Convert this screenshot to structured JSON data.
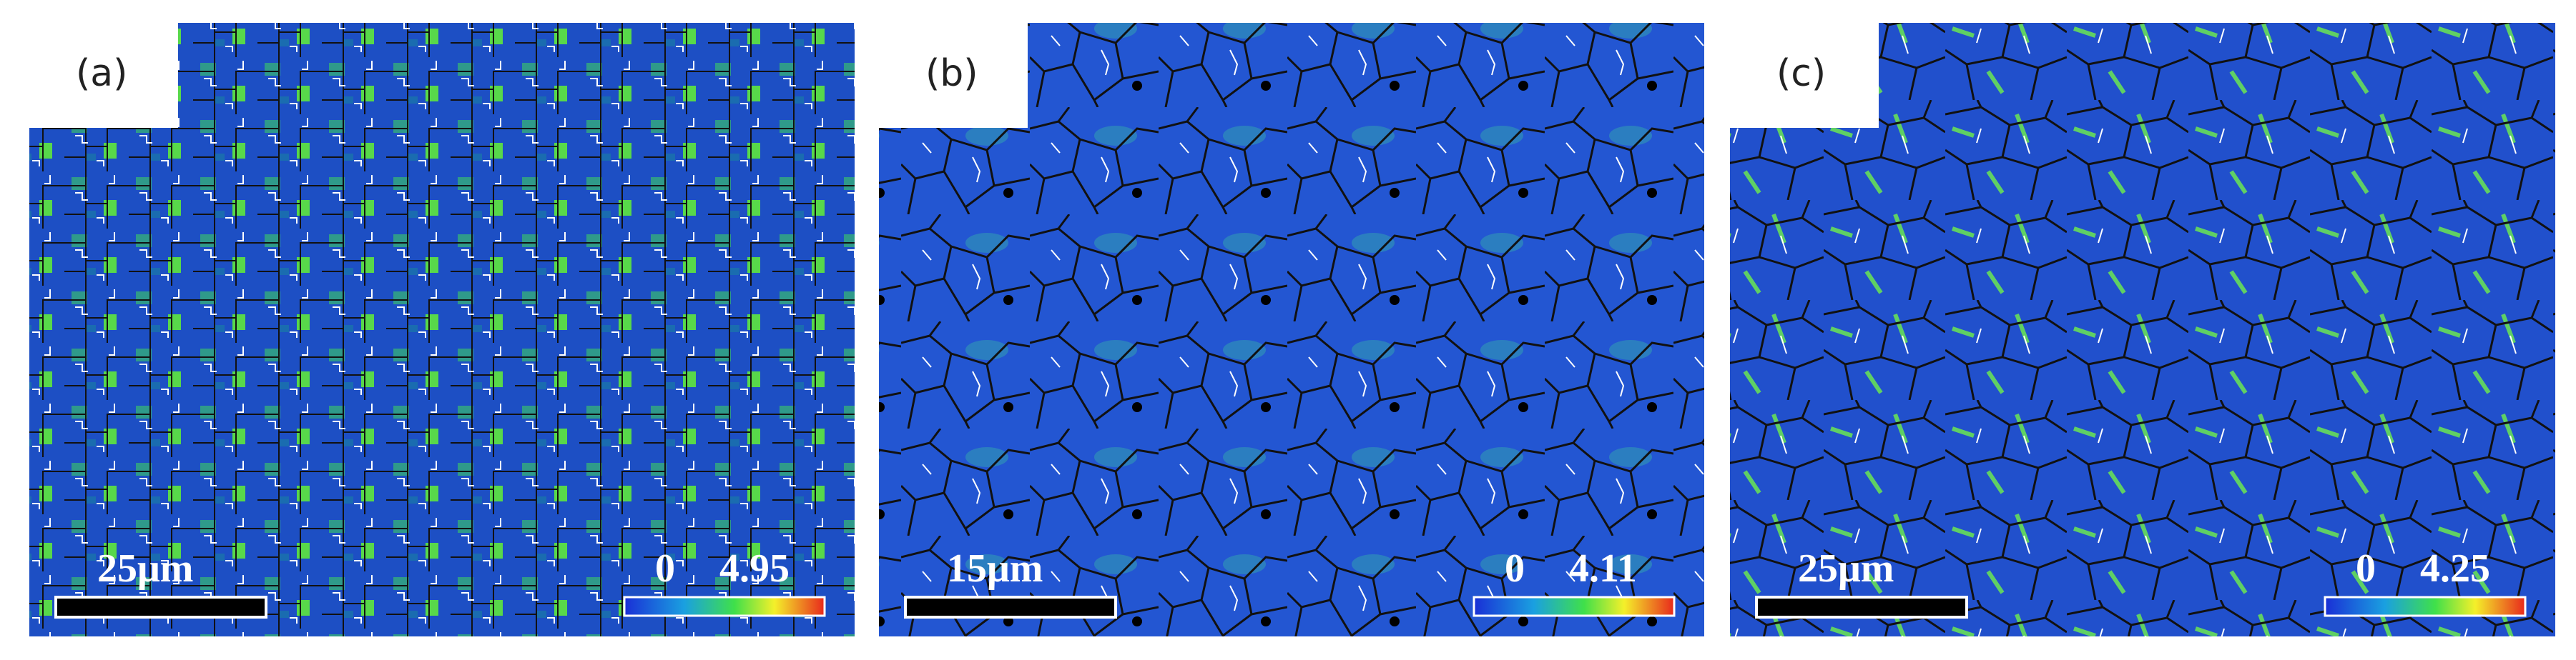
{
  "panels": [
    {
      "label": "(a)",
      "scale_bar": "25μm",
      "colorbar_min": 0,
      "colorbar_max": 4.95
    },
    {
      "label": "(b)",
      "scale_bar": "15μm",
      "colorbar_min": 0,
      "colorbar_max": 4.11
    },
    {
      "label": "(c)",
      "scale_bar": "25μm",
      "colorbar_min": 0,
      "colorbar_max": 4.25
    }
  ]
}
